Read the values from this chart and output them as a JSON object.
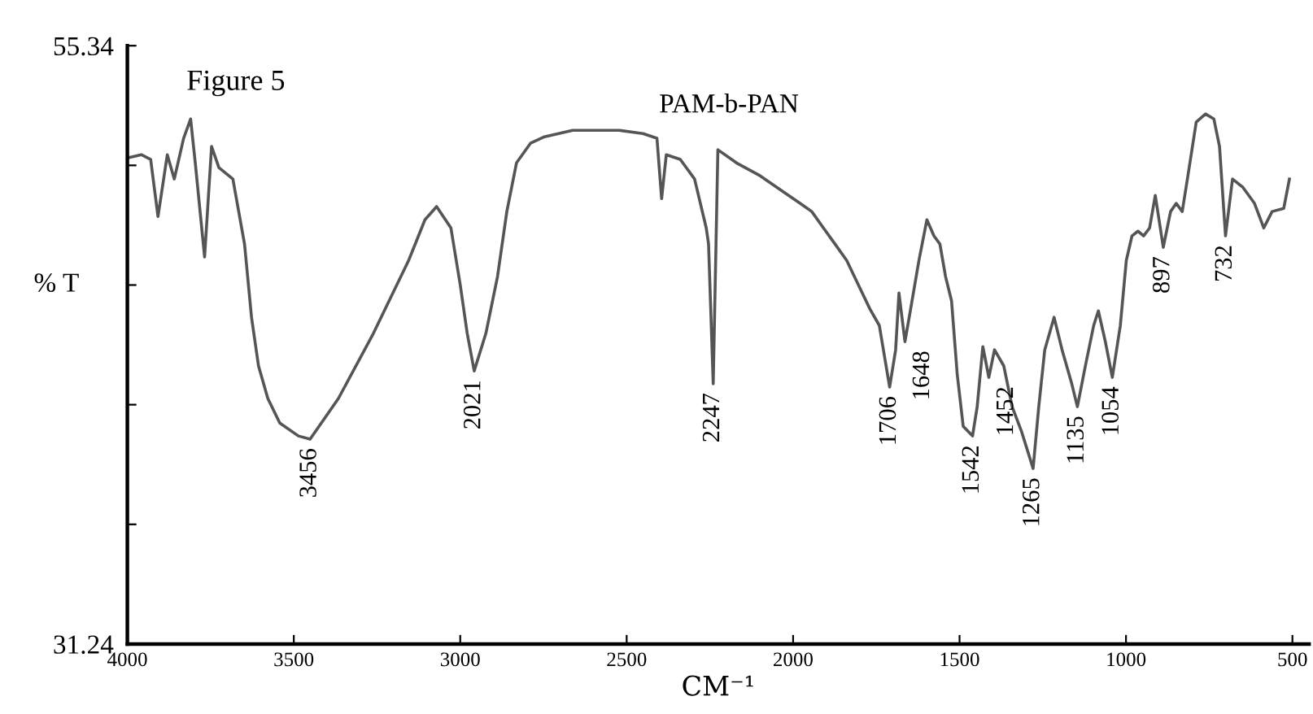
{
  "chart_data": {
    "type": "line",
    "title": "Figure 5",
    "subtitle": "PAM-b-PAN",
    "xlabel": "CM⁻¹",
    "ylabel": "% T",
    "xlim": [
      4000,
      450
    ],
    "xticks": [
      4000,
      3500,
      3000,
      2500,
      2000,
      1500,
      1000,
      500
    ],
    "ylim": [
      31.24,
      55.34
    ],
    "yticks": [
      {
        "value": 31.24,
        "label": "31.24"
      },
      {
        "value": 36.06,
        "label": null
      },
      {
        "value": 40.88,
        "label": null
      },
      {
        "value": 45.7,
        "label": null
      },
      {
        "value": 50.52,
        "label": null
      },
      55.34
    ],
    "grid": false,
    "marker": "none",
    "line_style": "solid",
    "series": [
      {
        "color": "#555555",
        "x": [
          4000,
          3958,
          3930,
          3908,
          3880,
          3859,
          3831,
          3810,
          3796,
          3768,
          3747,
          3725,
          3683,
          3648,
          3627,
          3606,
          3578,
          3542,
          3486,
          3451,
          3366,
          3261,
          3155,
          3106,
          3071,
          3028,
          3000,
          2979,
          2958,
          2923,
          2888,
          2860,
          2831,
          2789,
          2747,
          2662,
          2522,
          2451,
          2409,
          2395,
          2381,
          2339,
          2296,
          2261,
          2254,
          2240,
          2226,
          2170,
          2099,
          2029,
          1979,
          1944,
          1909,
          1874,
          1839,
          1804,
          1769,
          1741,
          1710,
          1692,
          1682,
          1664,
          1647,
          1622,
          1598,
          1577,
          1559,
          1542,
          1524,
          1507,
          1489,
          1461,
          1447,
          1430,
          1412,
          1395,
          1367,
          1342,
          1314,
          1279,
          1262,
          1244,
          1216,
          1192,
          1164,
          1146,
          1122,
          1097,
          1083,
          1062,
          1041,
          1017,
          999,
          982,
          964,
          947,
          929,
          912,
          888,
          866,
          849,
          831,
          814,
          789,
          761,
          736,
          719,
          701,
          680,
          649,
          614,
          586,
          561,
          526,
          509
        ],
        "values": [
          50.82,
          50.95,
          50.76,
          48.46,
          50.95,
          49.97,
          51.61,
          52.39,
          50.62,
          46.83,
          51.28,
          50.43,
          49.97,
          47.35,
          44.4,
          42.44,
          41.13,
          40.14,
          39.62,
          39.49,
          41.13,
          43.75,
          46.69,
          48.33,
          48.86,
          48.0,
          45.71,
          43.75,
          42.24,
          43.75,
          46.04,
          48.66,
          50.62,
          51.41,
          51.67,
          51.93,
          51.93,
          51.8,
          51.61,
          49.18,
          50.95,
          50.76,
          49.97,
          48.0,
          47.35,
          41.72,
          51.15,
          50.62,
          50.1,
          49.45,
          48.99,
          48.66,
          48.0,
          47.35,
          46.69,
          45.71,
          44.73,
          44.07,
          41.59,
          43.09,
          45.38,
          43.42,
          44.73,
          46.69,
          48.33,
          47.68,
          47.35,
          46.04,
          45.06,
          42.11,
          40.01,
          39.62,
          40.8,
          43.22,
          41.98,
          43.09,
          42.44,
          40.8,
          39.81,
          38.31,
          40.8,
          43.09,
          44.4,
          43.09,
          41.78,
          40.8,
          42.44,
          44.07,
          44.66,
          43.42,
          41.98,
          44.07,
          46.69,
          47.68,
          47.87,
          47.68,
          48.0,
          49.31,
          47.22,
          48.66,
          48.99,
          48.66,
          50.1,
          52.26,
          52.59,
          52.39,
          51.28,
          47.68,
          49.97,
          49.64,
          48.99,
          48.0,
          48.66,
          48.79,
          49.97
        ]
      }
    ],
    "annotations": [
      {
        "text": "3456",
        "x": 3451,
        "y": 39.49
      },
      {
        "text": "2021",
        "x": 2958,
        "y": 42.24
      },
      {
        "text": "2247",
        "x": 2240,
        "y": 41.72
      },
      {
        "text": "1706",
        "x": 1710,
        "y": 41.59
      },
      {
        "text": "1648",
        "x": 1664,
        "y": 43.42
      },
      {
        "text": "1542",
        "x": 1461,
        "y": 39.62
      },
      {
        "text": "1452",
        "x": 1412,
        "y": 41.98
      },
      {
        "text": "1265",
        "x": 1279,
        "y": 38.31
      },
      {
        "text": "1135",
        "x": 1146,
        "y": 40.8
      },
      {
        "text": "1054",
        "x": 1041,
        "y": 41.98
      },
      {
        "text": "897",
        "x": 888,
        "y": 47.22
      },
      {
        "text": "732",
        "x": 701,
        "y": 47.68
      }
    ]
  }
}
